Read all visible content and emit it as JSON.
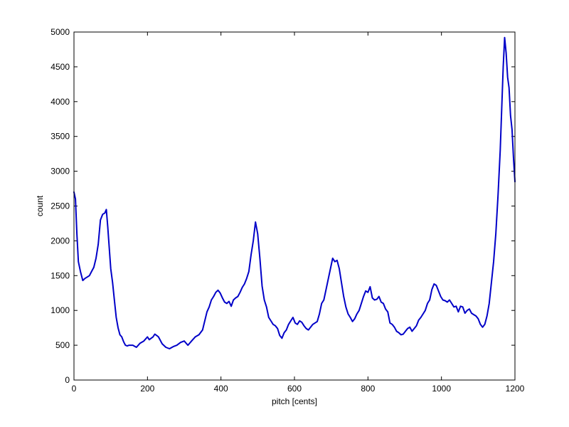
{
  "chart_data": {
    "type": "line",
    "title": "",
    "xlabel": "pitch [cents]",
    "ylabel": "count",
    "xlim": [
      0,
      1200
    ],
    "ylim": [
      0,
      5000
    ],
    "xticks": [
      0,
      200,
      400,
      600,
      800,
      1000,
      1200
    ],
    "yticks": [
      0,
      500,
      1000,
      1500,
      2000,
      2500,
      3000,
      3500,
      4000,
      4500,
      5000
    ],
    "grid": false,
    "legend": "none",
    "colors": {
      "line": "#0000c8",
      "axes": "#000000",
      "background": "#ffffff"
    },
    "series": [
      {
        "x": [
          0,
          4,
          8,
          12,
          18,
          24,
          30,
          36,
          42,
          48,
          54,
          60,
          66,
          72,
          78,
          84,
          88,
          92,
          96,
          100,
          105,
          110,
          115,
          120,
          125,
          130,
          135,
          140,
          145,
          150,
          160,
          170,
          180,
          190,
          200,
          205,
          210,
          215,
          220,
          225,
          230,
          240,
          250,
          260,
          270,
          280,
          290,
          300,
          310,
          320,
          330,
          340,
          350,
          356,
          362,
          368,
          374,
          380,
          386,
          392,
          398,
          404,
          410,
          416,
          422,
          428,
          434,
          440,
          446,
          452,
          458,
          464,
          470,
          476,
          482,
          488,
          494,
          500,
          506,
          512,
          518,
          524,
          530,
          536,
          542,
          548,
          554,
          560,
          566,
          572,
          578,
          584,
          590,
          596,
          602,
          608,
          614,
          620,
          626,
          632,
          638,
          644,
          650,
          656,
          662,
          668,
          674,
          680,
          686,
          692,
          698,
          704,
          710,
          716,
          722,
          728,
          734,
          740,
          746,
          752,
          758,
          764,
          770,
          776,
          782,
          788,
          794,
          800,
          806,
          812,
          818,
          824,
          830,
          836,
          842,
          848,
          854,
          860,
          866,
          872,
          878,
          884,
          890,
          896,
          902,
          908,
          914,
          920,
          926,
          932,
          938,
          944,
          950,
          956,
          962,
          968,
          974,
          980,
          986,
          992,
          998,
          1004,
          1010,
          1016,
          1022,
          1028,
          1034,
          1040,
          1046,
          1052,
          1058,
          1064,
          1070,
          1076,
          1082,
          1088,
          1094,
          1100,
          1106,
          1112,
          1118,
          1124,
          1130,
          1136,
          1142,
          1148,
          1154,
          1160,
          1164,
          1168,
          1172,
          1176,
          1180,
          1184,
          1188,
          1192,
          1196,
          1200
        ],
        "y": [
          2700,
          2600,
          2100,
          1700,
          1550,
          1430,
          1460,
          1480,
          1500,
          1560,
          1620,
          1750,
          1950,
          2300,
          2380,
          2400,
          2450,
          2200,
          1900,
          1600,
          1400,
          1150,
          900,
          750,
          650,
          620,
          550,
          500,
          490,
          500,
          500,
          470,
          530,
          560,
          620,
          580,
          600,
          620,
          660,
          640,
          620,
          520,
          470,
          450,
          480,
          500,
          540,
          560,
          500,
          560,
          620,
          650,
          720,
          850,
          980,
          1050,
          1150,
          1200,
          1260,
          1290,
          1250,
          1180,
          1120,
          1100,
          1130,
          1060,
          1150,
          1180,
          1200,
          1260,
          1330,
          1380,
          1460,
          1560,
          1800,
          2000,
          2270,
          2100,
          1750,
          1350,
          1150,
          1050,
          900,
          850,
          800,
          780,
          740,
          640,
          600,
          680,
          720,
          800,
          850,
          900,
          820,
          800,
          850,
          830,
          780,
          740,
          720,
          760,
          800,
          820,
          840,
          950,
          1100,
          1150,
          1300,
          1450,
          1600,
          1750,
          1700,
          1720,
          1600,
          1400,
          1200,
          1050,
          950,
          900,
          840,
          880,
          950,
          1000,
          1100,
          1200,
          1280,
          1260,
          1340,
          1180,
          1150,
          1160,
          1200,
          1120,
          1100,
          1020,
          980,
          820,
          800,
          760,
          700,
          680,
          650,
          660,
          700,
          740,
          760,
          700,
          740,
          780,
          860,
          900,
          950,
          1000,
          1100,
          1150,
          1300,
          1380,
          1360,
          1280,
          1200,
          1150,
          1140,
          1120,
          1150,
          1100,
          1050,
          1060,
          980,
          1060,
          1050,
          960,
          1000,
          1020,
          960,
          940,
          920,
          880,
          800,
          760,
          800,
          920,
          1100,
          1400,
          1700,
          2100,
          2650,
          3300,
          3900,
          4500,
          4920,
          4700,
          4350,
          4200,
          3800,
          3600,
          3200,
          2850
        ]
      }
    ]
  }
}
